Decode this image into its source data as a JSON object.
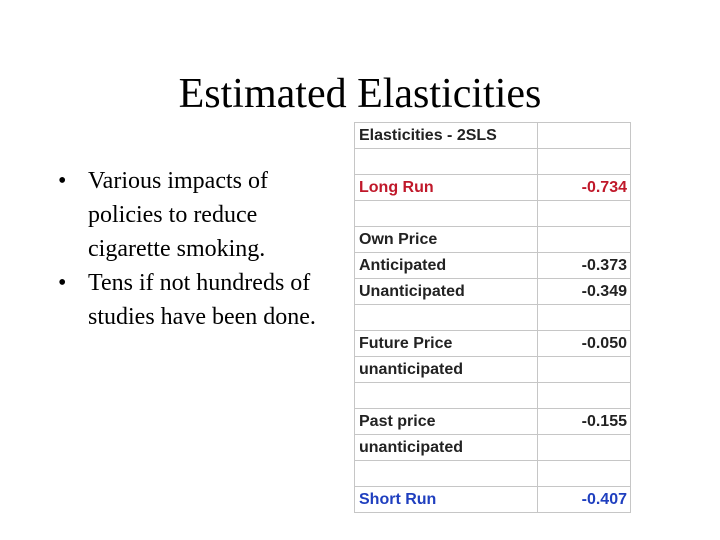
{
  "slide": {
    "title": "Estimated Elasticities",
    "bullets": [
      "Various impacts of policies to reduce cigarette smoking.",
      "Tens if not hundreds of studies have been done."
    ]
  },
  "table": {
    "header": "Elasticities - 2SLS",
    "long_run": {
      "label": "Long Run",
      "value": "-0.734"
    },
    "own_price": {
      "label": "Own Price",
      "anticipated_label": "Anticipated",
      "anticipated_value": "-0.373",
      "unanticipated_label": "Unanticipated",
      "unanticipated_value": "-0.349"
    },
    "future_price": {
      "label": "Future Price",
      "value": "-0.050",
      "sub_label": "unanticipated"
    },
    "past_price": {
      "label": "Past price",
      "value": "-0.155",
      "sub_label": "unanticipated"
    },
    "short_run": {
      "label": "Short Run",
      "value": "-0.407"
    }
  },
  "colors": {
    "long_run": "#c0182a",
    "short_run": "#1f3fbf",
    "text": "#222222"
  }
}
